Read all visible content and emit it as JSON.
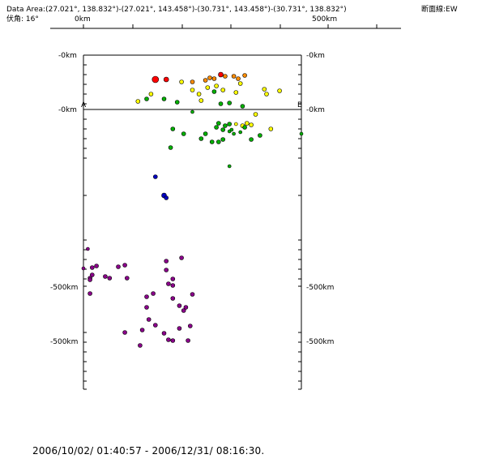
{
  "header": {
    "data_area": "Data Area:(27.021°, 138.832°)-(27.021°, 143.458°)-(30.731°, 143.458°)-(30.731°, 138.832°)",
    "section_line": "断面線:EW",
    "dip_angle": "伏角: 16°"
  },
  "scale_bar": {
    "start_label": "0km",
    "end_label": "500km"
  },
  "footer": {
    "period": "2006/10/02/ 01:40:57 - 2006/12/31/ 08:16:30."
  },
  "colors": {
    "red": "#ff0000",
    "orange": "#ff8c00",
    "yellow": "#ffff00",
    "green": "#00b000",
    "blue": "#0000c0",
    "purple": "#8a008a"
  },
  "chart_data": {
    "type": "scatter",
    "title": "",
    "section_labels": {
      "start": "A",
      "end": "B"
    },
    "map_view": {
      "ylabels_left": [
        "-0km",
        "-0km"
      ],
      "ylabels_right": [
        "-0km",
        "-0km"
      ]
    },
    "depth_section": {
      "ylabels_left": [
        "-500km",
        "-500km"
      ],
      "ylabels_right": [
        "-500km",
        "-500km"
      ]
    },
    "points": [
      {
        "d": 0.33,
        "v": 98,
        "c": "red",
        "s": 4
      },
      {
        "d": 0.38,
        "v": 98,
        "c": "red",
        "s": 3
      },
      {
        "d": 0.45,
        "v": 101,
        "c": "yellow",
        "s": 2.5
      },
      {
        "d": 0.5,
        "v": 101,
        "c": "orange",
        "s": 2.5
      },
      {
        "d": 0.56,
        "v": 99,
        "c": "orange",
        "s": 2.5
      },
      {
        "d": 0.58,
        "v": 96,
        "c": "orange",
        "s": 2.5
      },
      {
        "d": 0.6,
        "v": 97,
        "c": "orange",
        "s": 2.5
      },
      {
        "d": 0.63,
        "v": 92,
        "c": "red",
        "s": 3
      },
      {
        "d": 0.65,
        "v": 94,
        "c": "orange",
        "s": 2.5
      },
      {
        "d": 0.69,
        "v": 94,
        "c": "orange",
        "s": 2.5
      },
      {
        "d": 0.71,
        "v": 97,
        "c": "orange",
        "s": 2.5
      },
      {
        "d": 0.74,
        "v": 93,
        "c": "orange",
        "s": 2.5
      },
      {
        "d": 0.72,
        "v": 103,
        "c": "yellow",
        "s": 2.5
      },
      {
        "d": 0.5,
        "v": 111,
        "c": "yellow",
        "s": 2.5
      },
      {
        "d": 0.53,
        "v": 116,
        "c": "yellow",
        "s": 2.5
      },
      {
        "d": 0.57,
        "v": 108,
        "c": "yellow",
        "s": 2.5
      },
      {
        "d": 0.61,
        "v": 106,
        "c": "yellow",
        "s": 2.5
      },
      {
        "d": 0.64,
        "v": 111,
        "c": "yellow",
        "s": 2.5
      },
      {
        "d": 0.7,
        "v": 114,
        "c": "yellow",
        "s": 2.5
      },
      {
        "d": 0.83,
        "v": 110,
        "c": "yellow",
        "s": 2.5
      },
      {
        "d": 0.84,
        "v": 116,
        "c": "yellow",
        "s": 2.5
      },
      {
        "d": 0.9,
        "v": 112,
        "c": "yellow",
        "s": 2.5
      },
      {
        "d": 0.31,
        "v": 116,
        "c": "yellow",
        "s": 2.5
      },
      {
        "d": 0.25,
        "v": 125,
        "c": "yellow",
        "s": 2.5
      },
      {
        "d": 0.54,
        "v": 124,
        "c": "yellow",
        "s": 2.5
      },
      {
        "d": 0.29,
        "v": 122,
        "c": "green",
        "s": 2.5
      },
      {
        "d": 0.37,
        "v": 122,
        "c": "green",
        "s": 2.5
      },
      {
        "d": 0.43,
        "v": 126,
        "c": "green",
        "s": 2.5
      },
      {
        "d": 0.6,
        "v": 113,
        "c": "green",
        "s": 2.5
      },
      {
        "d": 0.63,
        "v": 128,
        "c": "green",
        "s": 2.5
      },
      {
        "d": 0.67,
        "v": 127,
        "c": "green",
        "s": 2.5
      },
      {
        "d": 0.73,
        "v": 131,
        "c": "green",
        "s": 2.5
      },
      {
        "d": 0.5,
        "v": 138,
        "c": "green",
        "s": 2
      },
      {
        "d": 0.79,
        "v": 141,
        "c": "yellow",
        "s": 2.5
      },
      {
        "d": 0.86,
        "v": 159,
        "c": "yellow",
        "s": 2.5
      },
      {
        "d": 0.41,
        "v": 159,
        "c": "green",
        "s": 2.5
      },
      {
        "d": 0.46,
        "v": 165,
        "c": "green",
        "s": 2.5
      },
      {
        "d": 0.61,
        "v": 157,
        "c": "green",
        "s": 2.5
      },
      {
        "d": 0.62,
        "v": 152,
        "c": "green",
        "s": 2.5
      },
      {
        "d": 0.64,
        "v": 160,
        "c": "green",
        "s": 2.5
      },
      {
        "d": 0.65,
        "v": 155,
        "c": "green",
        "s": 2.5
      },
      {
        "d": 0.67,
        "v": 153,
        "c": "green",
        "s": 2.5
      },
      {
        "d": 0.67,
        "v": 162,
        "c": "green",
        "s": 2
      },
      {
        "d": 0.68,
        "v": 160,
        "c": "green",
        "s": 2
      },
      {
        "d": 0.69,
        "v": 165,
        "c": "green",
        "s": 2
      },
      {
        "d": 0.7,
        "v": 153,
        "c": "yellow",
        "s": 2
      },
      {
        "d": 0.72,
        "v": 163,
        "c": "green",
        "s": 2
      },
      {
        "d": 0.73,
        "v": 155,
        "c": "yellow",
        "s": 2.5
      },
      {
        "d": 0.74,
        "v": 157,
        "c": "green",
        "s": 2.5
      },
      {
        "d": 0.75,
        "v": 152,
        "c": "yellow",
        "s": 2.5
      },
      {
        "d": 0.77,
        "v": 154,
        "c": "yellow",
        "s": 2.5
      },
      {
        "d": 0.56,
        "v": 165,
        "c": "green",
        "s": 2.5
      },
      {
        "d": 0.54,
        "v": 171,
        "c": "green",
        "s": 2.5
      },
      {
        "d": 0.59,
        "v": 175,
        "c": "green",
        "s": 2.5
      },
      {
        "d": 0.62,
        "v": 175,
        "c": "green",
        "s": 2.5
      },
      {
        "d": 0.64,
        "v": 172,
        "c": "green",
        "s": 2.5
      },
      {
        "d": 0.77,
        "v": 172,
        "c": "green",
        "s": 2.5
      },
      {
        "d": 0.81,
        "v": 167,
        "c": "green",
        "s": 2.5
      },
      {
        "d": 0.4,
        "v": 182,
        "c": "green",
        "s": 2.5
      },
      {
        "d": 0.67,
        "v": 205,
        "c": "green",
        "s": 2
      },
      {
        "d": 1.0,
        "v": 165,
        "c": "green",
        "s": 2
      },
      {
        "d": 0.33,
        "v": 218,
        "c": "blue",
        "s": 2.5
      },
      {
        "d": 0.37,
        "v": 241,
        "c": "blue",
        "s": 3
      },
      {
        "d": 0.38,
        "v": 244,
        "c": "blue",
        "s": 2.5
      },
      {
        "d": 0.02,
        "v": 307,
        "c": "purple",
        "s": 2
      },
      {
        "d": 0.0,
        "v": 331,
        "c": "purple",
        "s": 2
      },
      {
        "d": 0.04,
        "v": 330,
        "c": "purple",
        "s": 2.5
      },
      {
        "d": 0.06,
        "v": 328,
        "c": "purple",
        "s": 2.5
      },
      {
        "d": 0.04,
        "v": 339,
        "c": "purple",
        "s": 2.5
      },
      {
        "d": 0.03,
        "v": 343,
        "c": "purple",
        "s": 2.5
      },
      {
        "d": 0.03,
        "v": 345,
        "c": "purple",
        "s": 2.5
      },
      {
        "d": 0.1,
        "v": 341,
        "c": "purple",
        "s": 2.5
      },
      {
        "d": 0.12,
        "v": 343,
        "c": "purple",
        "s": 2.5
      },
      {
        "d": 0.16,
        "v": 329,
        "c": "purple",
        "s": 2.5
      },
      {
        "d": 0.19,
        "v": 327,
        "c": "purple",
        "s": 2.5
      },
      {
        "d": 0.2,
        "v": 343,
        "c": "purple",
        "s": 2.5
      },
      {
        "d": 0.38,
        "v": 322,
        "c": "purple",
        "s": 2.5
      },
      {
        "d": 0.38,
        "v": 333,
        "c": "purple",
        "s": 2.5
      },
      {
        "d": 0.39,
        "v": 350,
        "c": "purple",
        "s": 2.5
      },
      {
        "d": 0.45,
        "v": 318,
        "c": "purple",
        "s": 2.5
      },
      {
        "d": 0.41,
        "v": 344,
        "c": "purple",
        "s": 2.5
      },
      {
        "d": 0.41,
        "v": 352,
        "c": "purple",
        "s": 2.5
      },
      {
        "d": 0.03,
        "v": 362,
        "c": "purple",
        "s": 2.5
      },
      {
        "d": 0.32,
        "v": 362,
        "c": "purple",
        "s": 2.5
      },
      {
        "d": 0.29,
        "v": 366,
        "c": "purple",
        "s": 2.5
      },
      {
        "d": 0.41,
        "v": 368,
        "c": "purple",
        "s": 2.5
      },
      {
        "d": 0.44,
        "v": 377,
        "c": "purple",
        "s": 2.5
      },
      {
        "d": 0.5,
        "v": 363,
        "c": "purple",
        "s": 2.5
      },
      {
        "d": 0.46,
        "v": 383,
        "c": "purple",
        "s": 2.5
      },
      {
        "d": 0.47,
        "v": 379,
        "c": "purple",
        "s": 2.5
      },
      {
        "d": 0.29,
        "v": 379,
        "c": "purple",
        "s": 2.5
      },
      {
        "d": 0.3,
        "v": 394,
        "c": "purple",
        "s": 2.5
      },
      {
        "d": 0.33,
        "v": 401,
        "c": "purple",
        "s": 2.5
      },
      {
        "d": 0.27,
        "v": 407,
        "c": "purple",
        "s": 2.5
      },
      {
        "d": 0.19,
        "v": 410,
        "c": "purple",
        "s": 2.5
      },
      {
        "d": 0.37,
        "v": 411,
        "c": "purple",
        "s": 2.5
      },
      {
        "d": 0.44,
        "v": 405,
        "c": "purple",
        "s": 2.5
      },
      {
        "d": 0.49,
        "v": 402,
        "c": "purple",
        "s": 2.5
      },
      {
        "d": 0.39,
        "v": 419,
        "c": "purple",
        "s": 2.5
      },
      {
        "d": 0.41,
        "v": 420,
        "c": "purple",
        "s": 2.5
      },
      {
        "d": 0.48,
        "v": 420,
        "c": "purple",
        "s": 2.5
      },
      {
        "d": 0.26,
        "v": 426,
        "c": "purple",
        "s": 2.5
      }
    ]
  }
}
